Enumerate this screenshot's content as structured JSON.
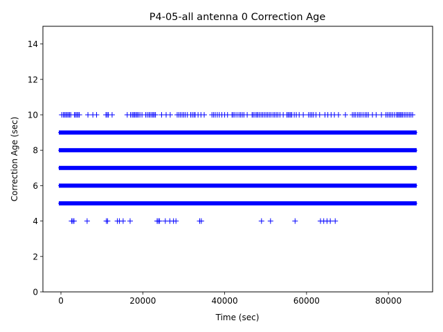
{
  "chart_data": {
    "type": "scatter",
    "title": "P4-05-all antenna 0 Correction Age",
    "xlabel": "Time (sec)",
    "ylabel": "Correction Age (sec)",
    "xlim": [
      -4400,
      90800
    ],
    "ylim": [
      0,
      15
    ],
    "x_ticks": [
      0,
      20000,
      40000,
      60000,
      80000
    ],
    "x_tick_labels": [
      "0",
      "20000",
      "40000",
      "60000",
      "80000"
    ],
    "y_ticks": [
      0,
      2,
      4,
      6,
      8,
      10,
      12,
      14
    ],
    "y_tick_labels": [
      "0",
      "2",
      "4",
      "6",
      "8",
      "10",
      "12",
      "14"
    ],
    "grid": false,
    "legend": "none",
    "marker": "plus",
    "color": "#0000ff",
    "series": [
      {
        "values_note_free": true,
        "levels": [
          {
            "y": 5,
            "x_range": [
              0,
              86400
            ]
          },
          {
            "y": 6,
            "x_range": [
              0,
              86400
            ]
          },
          {
            "y": 7,
            "x_range": [
              0,
              86400
            ]
          },
          {
            "y": 8,
            "x_range": [
              0,
              86400
            ]
          },
          {
            "y": 9,
            "x_range": [
              0,
              86400
            ]
          }
        ],
        "points_y10": [
          200,
          600,
          900,
          1200,
          1500,
          1800,
          2100,
          2400,
          3300,
          3600,
          3900,
          4200,
          4500,
          6600,
          7800,
          8700,
          11000,
          11300,
          11600,
          12500,
          16200,
          17000,
          17400,
          17700,
          18000,
          18300,
          18600,
          18900,
          19300,
          19800,
          20700,
          21100,
          21500,
          21800,
          22200,
          22500,
          22800,
          23100,
          24600,
          25700,
          26700,
          28400,
          28800,
          29200,
          29600,
          30000,
          30400,
          30900,
          31700,
          32100,
          32500,
          32800,
          33500,
          34200,
          35000,
          36900,
          37300,
          37700,
          38200,
          38700,
          39300,
          40000,
          40700,
          41800,
          42100,
          42500,
          43000,
          43500,
          43900,
          44300,
          44700,
          45500,
          46700,
          47000,
          47400,
          47800,
          48100,
          48500,
          48900,
          49300,
          49700,
          50100,
          50500,
          50900,
          51300,
          51800,
          52200,
          52600,
          53000,
          53500,
          54300,
          55200,
          55500,
          55800,
          56100,
          56400,
          57000,
          57500,
          58200,
          59200,
          60500,
          60900,
          61300,
          61700,
          62300,
          63200,
          64500,
          65200,
          66000,
          66800,
          67800,
          69500,
          71200,
          71600,
          72000,
          72500,
          72900,
          73300,
          73800,
          74300,
          74700,
          75100,
          76100,
          77000,
          78300,
          79400,
          79800,
          80200,
          80600,
          81000,
          81500,
          82000,
          82300,
          82600,
          82900,
          83200,
          83500,
          83900,
          84300,
          84700,
          85100,
          85500,
          85900
        ],
        "points_y4": [
          2600,
          2900,
          3200,
          6400,
          11100,
          11400,
          13800,
          14300,
          15200,
          16900,
          23500,
          23800,
          24100,
          25500,
          26600,
          27500,
          28100,
          33900,
          34300,
          49000,
          51200,
          57200,
          63400,
          64200,
          65000,
          65800,
          67000
        ]
      }
    ]
  }
}
